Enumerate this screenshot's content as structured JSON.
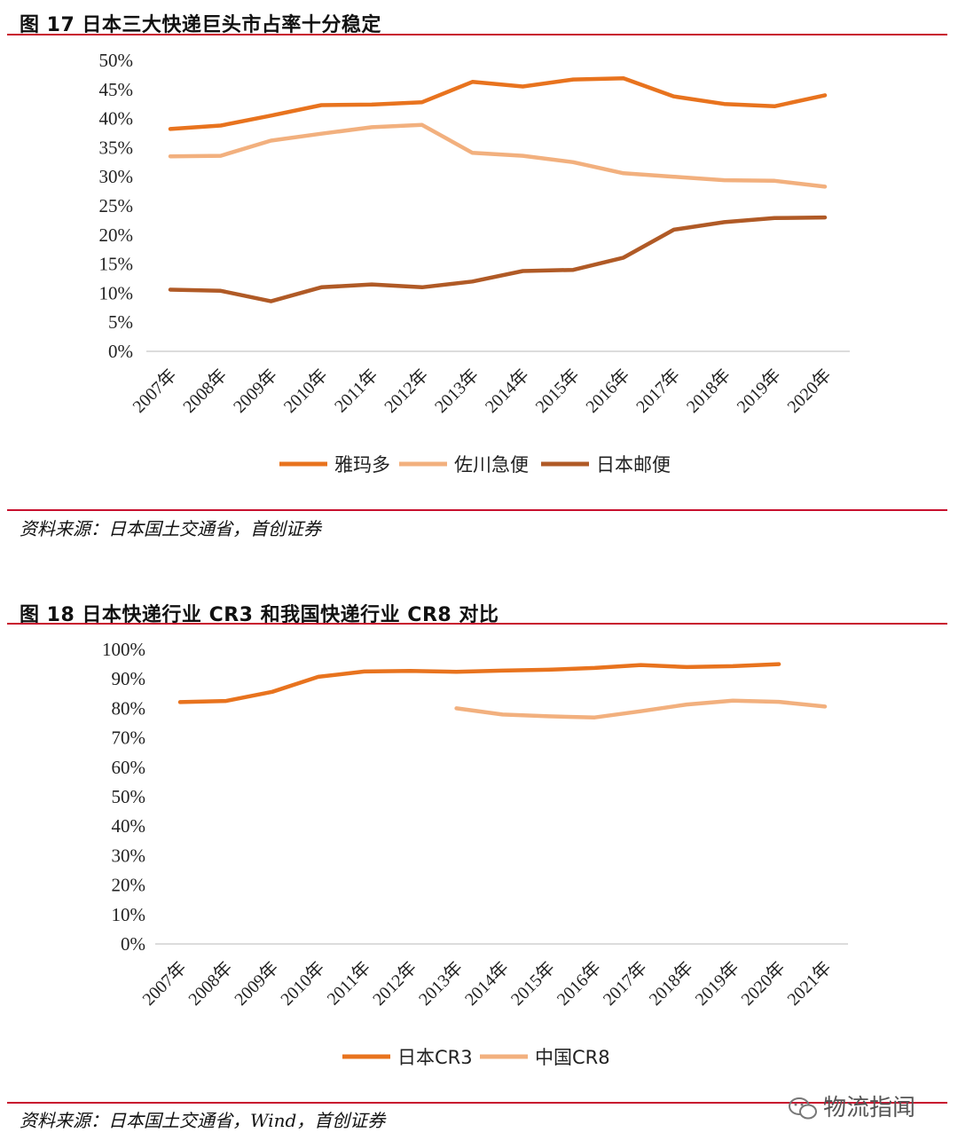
{
  "figure17": {
    "title": "图 17 日本三大快递巨头市占率十分稳定",
    "source": "资料来源：日本国土交通省，首创证券"
  },
  "figure18": {
    "title": "图 18 日本快递行业 CR3 和我国快递行业 CR8 对比",
    "source": "资料来源：日本国土交通省，Wind，首创证券"
  },
  "watermark": {
    "text": "物流指闻",
    "icon": "wechat-icon"
  },
  "colors": {
    "rule": "#c8102e",
    "dark_orange": "#e8731e",
    "light_orange": "#f2b07e",
    "brown": "#b05a26",
    "axis": "#d0d0d0"
  },
  "chart_data": [
    {
      "type": "line",
      "title": "",
      "xlabel": "",
      "ylabel": "",
      "categories": [
        "2007年",
        "2008年",
        "2009年",
        "2010年",
        "2011年",
        "2012年",
        "2013年",
        "2014年",
        "2015年",
        "2016年",
        "2017年",
        "2018年",
        "2019年",
        "2020年"
      ],
      "yticks": [
        "0%",
        "5%",
        "10%",
        "15%",
        "20%",
        "25%",
        "30%",
        "35%",
        "40%",
        "45%",
        "50%"
      ],
      "ylim": [
        0,
        50
      ],
      "grid": false,
      "legend": "bottom",
      "series": [
        {
          "name": "雅玛多",
          "color": "#e8731e",
          "values": [
            38.2,
            38.8,
            40.5,
            42.3,
            42.4,
            42.8,
            46.3,
            45.5,
            46.7,
            46.9,
            43.8,
            42.5,
            42.1,
            44.0
          ]
        },
        {
          "name": "佐川急便",
          "color": "#f2b07e",
          "values": [
            33.5,
            33.6,
            36.2,
            37.4,
            38.5,
            38.9,
            34.1,
            33.6,
            32.5,
            30.6,
            30.0,
            29.4,
            29.3,
            28.3
          ]
        },
        {
          "name": "日本邮便",
          "color": "#b05a26",
          "values": [
            10.6,
            10.4,
            8.6,
            11.0,
            11.5,
            11.0,
            12.0,
            13.8,
            14.0,
            16.1,
            20.9,
            22.2,
            22.9,
            23.0
          ]
        }
      ]
    },
    {
      "type": "line",
      "title": "",
      "xlabel": "",
      "ylabel": "",
      "categories": [
        "2007年",
        "2008年",
        "2009年",
        "2010年",
        "2011年",
        "2012年",
        "2013年",
        "2014年",
        "2015年",
        "2016年",
        "2017年",
        "2018年",
        "2019年",
        "2020年",
        "2021年"
      ],
      "yticks": [
        "0%",
        "10%",
        "20%",
        "30%",
        "40%",
        "50%",
        "60%",
        "70%",
        "80%",
        "90%",
        "100%"
      ],
      "ylim": [
        0,
        100
      ],
      "grid": false,
      "legend": "bottom",
      "series": [
        {
          "name": "日本CR3",
          "color": "#e8731e",
          "values": [
            82.1,
            82.5,
            85.6,
            90.7,
            92.5,
            92.7,
            92.4,
            92.8,
            93.1,
            93.7,
            94.7,
            94.0,
            94.3,
            95.0,
            null
          ]
        },
        {
          "name": "中国CR8",
          "color": "#f2b07e",
          "values": [
            null,
            null,
            null,
            null,
            null,
            null,
            80.0,
            77.9,
            77.3,
            76.9,
            79.0,
            81.3,
            82.6,
            82.2,
            80.6
          ]
        }
      ]
    }
  ]
}
